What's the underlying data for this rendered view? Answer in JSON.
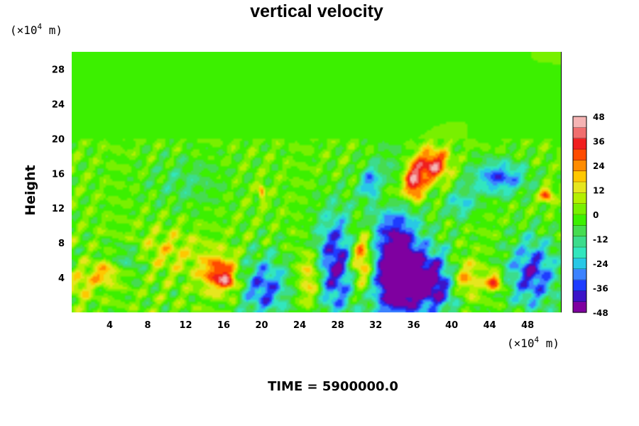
{
  "chart_data": {
    "type": "heatmap",
    "title": "vertical velocity",
    "ylabel": "Height",
    "y_unit_prefix": "(×10",
    "y_unit_exp": "4",
    "y_unit_suffix": " m)",
    "x_unit_prefix": "(×10",
    "x_unit_exp": "4",
    "x_unit_suffix": " m)",
    "xlim": [
      0,
      51.5
    ],
    "ylim": [
      0,
      30
    ],
    "xticks": [
      4,
      8,
      12,
      16,
      20,
      24,
      28,
      32,
      36,
      40,
      44,
      48
    ],
    "yticks": [
      4,
      8,
      12,
      16,
      20,
      24,
      28
    ],
    "colorbar": {
      "range": [
        -48,
        48
      ],
      "ticks": [
        48,
        36,
        24,
        12,
        0,
        -12,
        -24,
        -36,
        -48
      ],
      "colors": [
        "#7f00a0",
        "#3c14c8",
        "#1e3cff",
        "#3c82ff",
        "#28c8e6",
        "#32e6be",
        "#3cdc8c",
        "#46dc50",
        "#3cf000",
        "#78f000",
        "#b4f000",
        "#e6e61e",
        "#ffc800",
        "#ff8c00",
        "#ff4b00",
        "#f01e1e",
        "#f06e6e",
        "#f5b4b4"
      ]
    },
    "features": [
      {
        "x": 15.5,
        "y": 4.5,
        "w": 5.3,
        "z": 34,
        "sx": 2.2,
        "sy": 2.4
      },
      {
        "x": 16.5,
        "y": 3.5,
        "w": 6.0,
        "z": 18,
        "sx": 1.0,
        "sy": 1.2
      },
      {
        "x": 3.5,
        "y": 4.5,
        "w": 3.2,
        "z": 22,
        "sx": 1.5,
        "sy": 1.2
      },
      {
        "x": 1.0,
        "y": 3.0,
        "w": 3.2,
        "z": 14,
        "sx": 1.2,
        "sy": 1.5
      },
      {
        "x": 20.3,
        "y": 2.8,
        "w": 1.0,
        "z": -34,
        "sx": 1.2,
        "sy": 1.8
      },
      {
        "x": 25.2,
        "y": 4.0,
        "w": 3.7,
        "z": 24,
        "sx": 1.2,
        "sy": 3.0
      },
      {
        "x": 27.8,
        "y": 5.5,
        "w": 1.0,
        "z": -42,
        "sx": 1.1,
        "sy": 3.0
      },
      {
        "x": 30.5,
        "y": 6.0,
        "w": 6.5,
        "z": 40,
        "sx": 1.6,
        "sy": 4.5
      },
      {
        "x": 34.0,
        "y": 6.0,
        "w": 1.0,
        "z": -44,
        "sx": 1.3,
        "sy": 4.5
      },
      {
        "x": 36.5,
        "y": 4.0,
        "w": 1.1,
        "z": -34,
        "sx": 2.0,
        "sy": 2.0
      },
      {
        "x": 39.0,
        "y": 3.0,
        "w": 1.0,
        "z": -28,
        "sx": 1.2,
        "sy": 1.5
      },
      {
        "x": 41.0,
        "y": 3.8,
        "w": 3.5,
        "z": 34,
        "sx": 1.8,
        "sy": 2.3
      },
      {
        "x": 44.5,
        "y": 3.5,
        "w": 3.5,
        "z": 36,
        "sx": 0.8,
        "sy": 0.9
      },
      {
        "x": 48.5,
        "y": 4.5,
        "w": 1.2,
        "z": -38,
        "sx": 1.4,
        "sy": 2.2
      },
      {
        "x": 36.0,
        "y": 15.0,
        "w": 4.7,
        "z": 46,
        "sx": 1.2,
        "sy": 2.5
      },
      {
        "x": 38.0,
        "y": 17.0,
        "w": 3.7,
        "z": 40,
        "sx": 1.6,
        "sy": 1.8
      },
      {
        "x": 33.5,
        "y": 13.5,
        "w": 2.2,
        "z": 22,
        "sx": 1.5,
        "sy": 1.5
      },
      {
        "x": 31.5,
        "y": 14.8,
        "w": 1.1,
        "z": -30,
        "sx": 0.6,
        "sy": 1.0
      },
      {
        "x": 45.0,
        "y": 15.5,
        "w": 1.1,
        "z": -34,
        "sx": 1.5,
        "sy": 1.0
      },
      {
        "x": 50.0,
        "y": 13.5,
        "w": 3.1,
        "z": 34,
        "sx": 0.6,
        "sy": 0.7
      },
      {
        "x": 20.0,
        "y": 13.8,
        "w": 3.3,
        "z": 30,
        "sx": 0.3,
        "sy": 0.8
      },
      {
        "x": 41.0,
        "y": 12.5,
        "w": 1.0,
        "z": -22,
        "sx": 0.8,
        "sy": 0.8
      },
      {
        "x": 10.0,
        "y": 7.0,
        "w": 2.5,
        "z": 12,
        "sx": 3.0,
        "sy": 2.0
      },
      {
        "x": 6.0,
        "y": 6.0,
        "w": 1.0,
        "z": -14,
        "sx": 1.0,
        "sy": 1.0
      },
      {
        "x": 12.0,
        "y": 15.0,
        "w": 1.0,
        "z": -10,
        "sx": 2.0,
        "sy": 1.5
      }
    ]
  },
  "time_label": "TIME = 5900000.0"
}
